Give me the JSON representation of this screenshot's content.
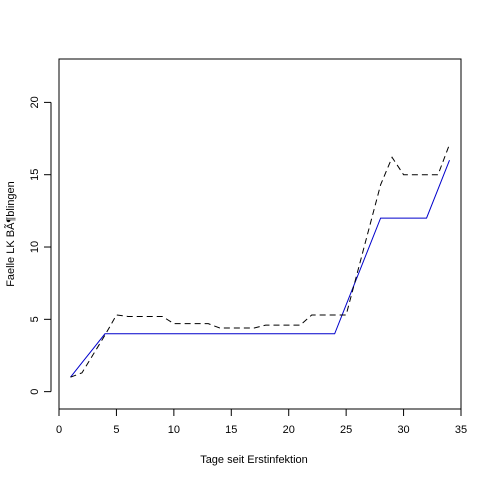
{
  "chart_data": {
    "type": "line",
    "title": "",
    "xlabel": "Tage seit Erstinfektion",
    "ylabel": "Faelle LK BÃ¶blingen",
    "xlim": [
      0,
      35
    ],
    "ylim": [
      -1.2,
      23
    ],
    "xticks": [
      "0",
      "5",
      "10",
      "15",
      "20",
      "25",
      "30",
      "35"
    ],
    "yticks": [
      "0",
      "5",
      "10",
      "15",
      "20"
    ],
    "grid": false,
    "legend": "none",
    "series": [
      {
        "style": "solid",
        "color": "#0000cc",
        "x": [
          1,
          2,
          3,
          4,
          5,
          6,
          7,
          8,
          9,
          10,
          11,
          12,
          13,
          14,
          15,
          16,
          17,
          18,
          19,
          20,
          21,
          22,
          23,
          24,
          25,
          26,
          27,
          28,
          29,
          30,
          31,
          32,
          33,
          34
        ],
        "y": [
          1,
          2,
          3,
          4,
          4,
          4,
          4,
          4,
          4,
          4,
          4,
          4,
          4,
          4,
          4,
          4,
          4,
          4,
          4,
          4,
          4,
          4,
          4,
          4,
          6,
          8,
          10,
          12,
          12,
          12,
          12,
          12,
          14,
          16
        ]
      },
      {
        "style": "dashed",
        "color": "#000000",
        "x": [
          1,
          2,
          3,
          4,
          5,
          6,
          7,
          8,
          9,
          10,
          11,
          12,
          13,
          14,
          15,
          16,
          17,
          18,
          19,
          20,
          21,
          22,
          23,
          24,
          25,
          26,
          27,
          28,
          29,
          30,
          31,
          32,
          33,
          34
        ],
        "y": [
          1,
          1.3,
          2.6,
          3.9,
          5.3,
          5.2,
          5.2,
          5.2,
          5.2,
          4.7,
          4.7,
          4.7,
          4.7,
          4.4,
          4.4,
          4.4,
          4.4,
          4.6,
          4.6,
          4.6,
          4.6,
          5.3,
          5.3,
          5.3,
          5.3,
          8.3,
          11.3,
          14.3,
          16.2,
          15,
          15,
          15,
          15,
          17.1
        ]
      }
    ]
  }
}
